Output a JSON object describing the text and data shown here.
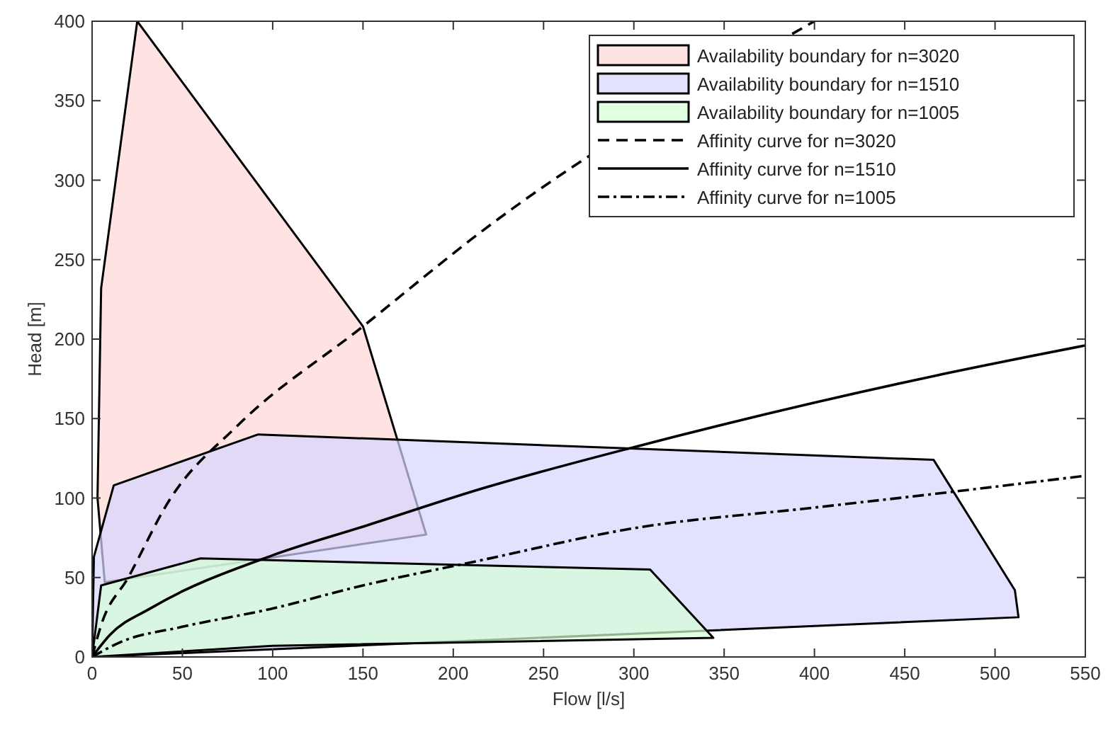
{
  "chart_data": {
    "type": "area",
    "xlabel": "Flow [l/s]",
    "ylabel": "Head [m]",
    "xlim": [
      0,
      550
    ],
    "ylim": [
      0,
      400
    ],
    "xticks": [
      0,
      50,
      100,
      150,
      200,
      250,
      300,
      350,
      400,
      450,
      500,
      550
    ],
    "yticks": [
      0,
      50,
      100,
      150,
      200,
      250,
      300,
      350,
      400
    ],
    "grid": false,
    "legend": "top right",
    "series": [
      {
        "name": "Availability boundary for n=3020",
        "color": "#ffd6d6",
        "x": [
          5,
          25,
          150,
          185,
          7,
          3,
          5
        ],
        "values": [
          232,
          400,
          208,
          77,
          47,
          100,
          232
        ]
      },
      {
        "name": "Availability boundary for n=1510",
        "color": "#d6d6ff",
        "x": [
          0,
          1,
          12,
          92,
          466,
          511,
          513,
          0
        ],
        "values": [
          0,
          63,
          108,
          140,
          124,
          42,
          25,
          0
        ]
      },
      {
        "name": "Availability boundary for n=1005",
        "color": "#d6ffd6",
        "x": [
          0,
          5,
          60,
          309,
          344,
          100,
          0
        ],
        "values": [
          0,
          45,
          62,
          55,
          12,
          7,
          0
        ]
      },
      {
        "name": "Affinity curve for n=3020",
        "type": "line",
        "color": "#000000",
        "line_style": "dashed",
        "x": [
          0,
          5,
          20,
          43,
          80,
          150,
          216,
          300,
          400
        ],
        "values": [
          0,
          20,
          50,
          99,
          145,
          208,
          268,
          null,
          400
        ]
      },
      {
        "name": "Affinity curve for n=1510",
        "type": "line",
        "color": "#000000",
        "line_style": "solid",
        "x": [
          0,
          10,
          33,
          100,
          150,
          216,
          300,
          400,
          467,
          550
        ],
        "values": [
          0,
          14,
          31,
          64,
          82,
          106,
          132,
          160,
          177,
          196
        ]
      },
      {
        "name": "Affinity curve for n=1005",
        "type": "line",
        "color": "#000000",
        "line_style": "dashdot",
        "x": [
          0,
          15,
          50,
          98,
          150,
          216,
          300,
          400,
          477,
          550
        ],
        "values": [
          0,
          9,
          19,
          30,
          45,
          61,
          81,
          94,
          104,
          114
        ]
      }
    ]
  }
}
